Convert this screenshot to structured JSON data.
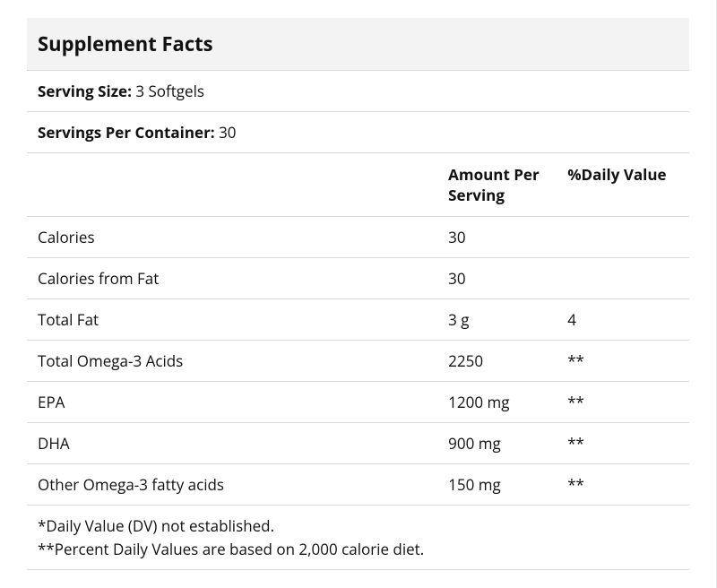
{
  "title": "Supplement Facts",
  "serving_size": {
    "label": "Serving Size:",
    "value": "3 Softgels"
  },
  "servings_per_container": {
    "label": "Servings Per Container:",
    "value": "30"
  },
  "columns": {
    "name": "",
    "amount": "Amount Per Serving",
    "dv": "%Daily Value"
  },
  "rows": [
    {
      "name": "Calories",
      "amount": "30",
      "dv": ""
    },
    {
      "name": "Calories from Fat",
      "amount": "30",
      "dv": ""
    },
    {
      "name": "Total Fat",
      "amount": "3 g",
      "dv": "4"
    },
    {
      "name": "Total Omega-3 Acids",
      "amount": "2250",
      "dv": "**"
    },
    {
      "name": "EPA",
      "amount": "1200 mg",
      "dv": "**"
    },
    {
      "name": "DHA",
      "amount": "900 mg",
      "dv": "**"
    },
    {
      "name": "Other Omega-3 fatty acids",
      "amount": "150 mg",
      "dv": "**"
    }
  ],
  "footnotes": [
    "*Daily Value (DV) not established.",
    "**Percent Daily Values are based on 2,000 calorie diet."
  ],
  "style": {
    "border_color": "#d9d9d9",
    "title_bg": "#f3f3f3",
    "text_color": "#111111",
    "font_size_body": 17,
    "font_size_title": 22
  }
}
